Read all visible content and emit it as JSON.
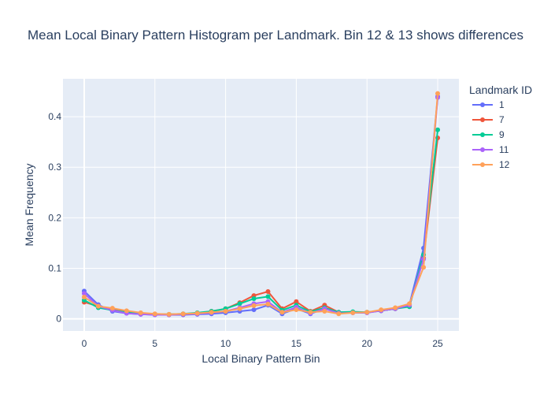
{
  "chart_data": {
    "type": "line",
    "title": "Mean Local Binary Pattern Histogram per Landmark. Bin 12 & 13 shows differences",
    "xlabel": "Local Binary Pattern Bin",
    "ylabel": "Mean Frequency",
    "xlim": [
      -1.5,
      26.5
    ],
    "ylim": [
      -0.024,
      0.475
    ],
    "x_ticks": [
      0,
      5,
      10,
      15,
      20,
      25
    ],
    "y_ticks": [
      0,
      0.1,
      0.2,
      0.3,
      0.4
    ],
    "x_tick_labels": [
      "0",
      "5",
      "10",
      "15",
      "20",
      "25"
    ],
    "y_tick_labels": [
      "0",
      "0.1",
      "0.2",
      "0.3",
      "0.4"
    ],
    "grid": true,
    "legend_title": "Landmark ID",
    "legend_position": "right",
    "x": [
      0,
      1,
      2,
      3,
      4,
      5,
      6,
      7,
      8,
      9,
      10,
      11,
      12,
      13,
      14,
      15,
      16,
      17,
      18,
      19,
      20,
      21,
      22,
      23,
      24,
      25
    ],
    "series": [
      {
        "name": "1",
        "color": "#636efa",
        "values": [
          0.055,
          0.028,
          0.015,
          0.011,
          0.009,
          0.008,
          0.008,
          0.008,
          0.009,
          0.01,
          0.012,
          0.015,
          0.018,
          0.027,
          0.01,
          0.02,
          0.01,
          0.02,
          0.012,
          0.012,
          0.012,
          0.016,
          0.02,
          0.028,
          0.14,
          0.44
        ]
      },
      {
        "name": "7",
        "color": "#ef553b",
        "values": [
          0.033,
          0.025,
          0.019,
          0.014,
          0.011,
          0.009,
          0.008,
          0.009,
          0.011,
          0.015,
          0.02,
          0.032,
          0.046,
          0.054,
          0.02,
          0.034,
          0.015,
          0.027,
          0.013,
          0.013,
          0.013,
          0.016,
          0.02,
          0.025,
          0.12,
          0.358
        ]
      },
      {
        "name": "9",
        "color": "#00cc96",
        "values": [
          0.037,
          0.022,
          0.017,
          0.013,
          0.01,
          0.009,
          0.009,
          0.01,
          0.012,
          0.015,
          0.02,
          0.03,
          0.04,
          0.044,
          0.017,
          0.027,
          0.014,
          0.022,
          0.013,
          0.014,
          0.013,
          0.016,
          0.02,
          0.024,
          0.127,
          0.374
        ]
      },
      {
        "name": "11",
        "color": "#ab63fa",
        "values": [
          0.05,
          0.025,
          0.017,
          0.011,
          0.009,
          0.008,
          0.008,
          0.009,
          0.01,
          0.012,
          0.015,
          0.022,
          0.03,
          0.034,
          0.013,
          0.023,
          0.011,
          0.02,
          0.011,
          0.012,
          0.012,
          0.016,
          0.02,
          0.027,
          0.118,
          0.438
        ]
      },
      {
        "name": "12",
        "color": "#ffa15a",
        "values": [
          0.043,
          0.025,
          0.021,
          0.016,
          0.012,
          0.01,
          0.009,
          0.01,
          0.011,
          0.013,
          0.015,
          0.02,
          0.026,
          0.029,
          0.013,
          0.018,
          0.013,
          0.015,
          0.01,
          0.012,
          0.013,
          0.018,
          0.022,
          0.03,
          0.102,
          0.446
        ]
      }
    ]
  }
}
